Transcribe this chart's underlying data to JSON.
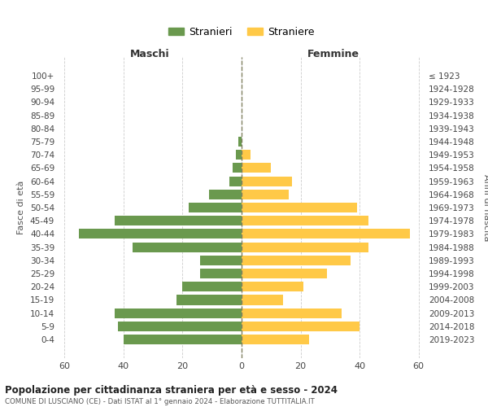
{
  "age_groups": [
    "100+",
    "95-99",
    "90-94",
    "85-89",
    "80-84",
    "75-79",
    "70-74",
    "65-69",
    "60-64",
    "55-59",
    "50-54",
    "45-49",
    "40-44",
    "35-39",
    "30-34",
    "25-29",
    "20-24",
    "15-19",
    "10-14",
    "5-9",
    "0-4"
  ],
  "birth_years": [
    "≤ 1923",
    "1924-1928",
    "1929-1933",
    "1934-1938",
    "1939-1943",
    "1944-1948",
    "1949-1953",
    "1954-1958",
    "1959-1963",
    "1964-1968",
    "1969-1973",
    "1974-1978",
    "1979-1983",
    "1984-1988",
    "1989-1993",
    "1994-1998",
    "1999-2003",
    "2004-2008",
    "2009-2013",
    "2014-2018",
    "2019-2023"
  ],
  "maschi": [
    0,
    0,
    0,
    0,
    0,
    1,
    2,
    3,
    4,
    11,
    18,
    43,
    55,
    37,
    14,
    14,
    20,
    22,
    43,
    42,
    40
  ],
  "femmine": [
    0,
    0,
    0,
    0,
    0,
    0,
    3,
    10,
    17,
    16,
    39,
    43,
    57,
    43,
    37,
    29,
    21,
    14,
    34,
    40,
    23
  ],
  "male_color": "#6a994e",
  "female_color": "#ffc947",
  "grid_color": "#cccccc",
  "center_line_color": "#808060",
  "title": "Popolazione per cittadinanza straniera per età e sesso - 2024",
  "subtitle": "COMUNE DI LUSCIANO (CE) - Dati ISTAT al 1° gennaio 2024 - Elaborazione TUTTITALIA.IT",
  "xlabel_left": "Maschi",
  "xlabel_right": "Femmine",
  "ylabel_left": "Fasce di età",
  "ylabel_right": "Anni di nascita",
  "legend_male": "Stranieri",
  "legend_female": "Straniere",
  "xlim": 62,
  "background_color": "#ffffff"
}
